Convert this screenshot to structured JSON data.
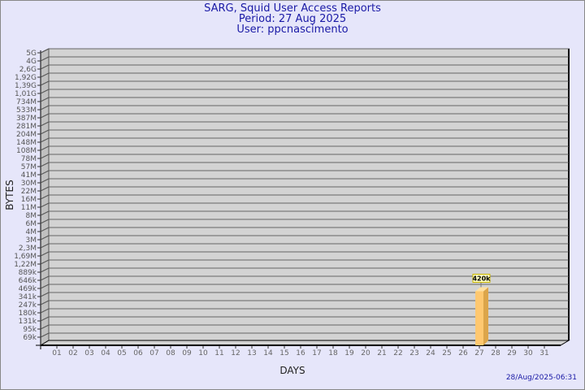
{
  "header": {
    "title": "SARG, Squid User Access Reports",
    "period": "Period: 27 Aug 2025",
    "user": "User: ppcnascimento"
  },
  "timestamp": "28/Aug/2025-06:31",
  "chart_data": {
    "type": "bar",
    "xlabel": "DAYS",
    "ylabel": "BYTES",
    "y_scale": "log",
    "y_ticks": [
      "5G",
      "4G",
      "2,6G",
      "1,92G",
      "1,39G",
      "1,01G",
      "734M",
      "533M",
      "387M",
      "281M",
      "204M",
      "148M",
      "108M",
      "78M",
      "57M",
      "41M",
      "30M",
      "22M",
      "16M",
      "11M",
      "8M",
      "6M",
      "4M",
      "3M",
      "2,3M",
      "1,69M",
      "1,22M",
      "889k",
      "646k",
      "469k",
      "341k",
      "247k",
      "180k",
      "131k",
      "95k",
      "69k"
    ],
    "categories": [
      "01",
      "02",
      "03",
      "04",
      "05",
      "06",
      "07",
      "08",
      "09",
      "10",
      "11",
      "12",
      "13",
      "14",
      "15",
      "16",
      "17",
      "18",
      "19",
      "20",
      "21",
      "22",
      "23",
      "24",
      "25",
      "26",
      "27",
      "28",
      "29",
      "30",
      "31"
    ],
    "bars": [
      {
        "day": "27",
        "value": 420000,
        "label": "420k"
      }
    ],
    "grid": true,
    "colors": {
      "bar": "#ffc870",
      "bar_side": "#dca54a",
      "wall": "#d3d3d3",
      "side_wall": "#c0c0c0",
      "background": "#e6e6fa",
      "title": "#1a1aa6"
    }
  }
}
